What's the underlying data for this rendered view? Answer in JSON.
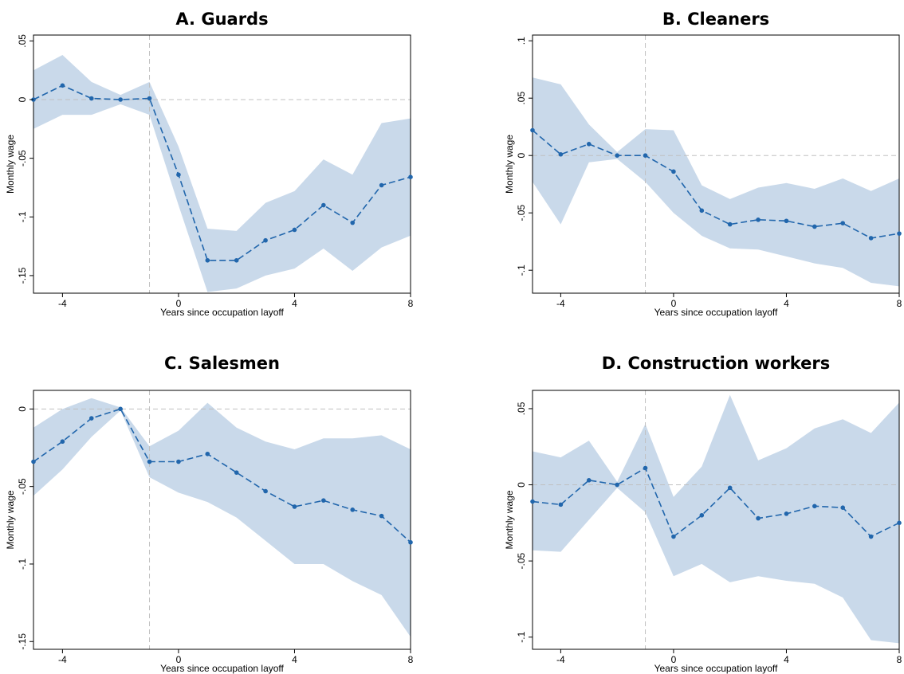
{
  "figure": {
    "colors": {
      "line": "#2166ac",
      "ci_fill": "#c9d9ea",
      "ref_line": "#c0c0c0",
      "axis": "#000000"
    }
  },
  "chart_data": [
    {
      "type": "line",
      "title": "A. Guards",
      "xlabel": "Years since occupation layoff",
      "ylabel": "Monthly wage",
      "xlim": [
        -5,
        8
      ],
      "ylim": [
        -0.165,
        0.055
      ],
      "x_ticks": [
        -4,
        0,
        4,
        8
      ],
      "x_tick_labels": [
        "-4",
        "0",
        "4",
        "8"
      ],
      "y_ticks": [
        0.05,
        0,
        -0.05,
        -0.1,
        -0.15
      ],
      "y_tick_labels": [
        ".05",
        "0",
        "-.05",
        "-.1",
        "-.15"
      ],
      "ref_lines": {
        "x": -1,
        "y": 0
      },
      "x": [
        -5,
        -4,
        -3,
        -2,
        -1,
        0,
        1,
        2,
        3,
        4,
        5,
        6,
        7,
        8
      ],
      "series": [
        {
          "values": [
            0,
            0.012,
            0.001,
            0,
            0.001,
            -0.064,
            -0.137,
            -0.137,
            -0.12,
            -0.111,
            -0.09,
            -0.105,
            -0.073,
            -0.066
          ],
          "ci_upper": [
            0.025,
            0.038,
            0.015,
            0.004,
            0.015,
            -0.04,
            -0.11,
            -0.112,
            -0.088,
            -0.078,
            -0.051,
            -0.064,
            -0.02,
            -0.016
          ],
          "ci_lower": [
            -0.025,
            -0.013,
            -0.013,
            -0.004,
            -0.013,
            -0.09,
            -0.164,
            -0.161,
            -0.15,
            -0.144,
            -0.127,
            -0.146,
            -0.126,
            -0.116
          ]
        }
      ]
    },
    {
      "type": "line",
      "title": "B. Cleaners",
      "xlabel": "Years since occupation layoff",
      "ylabel": "Monthly wage",
      "xlim": [
        -5,
        8
      ],
      "ylim": [
        -0.12,
        0.105
      ],
      "x_ticks": [
        -4,
        0,
        4,
        8
      ],
      "x_tick_labels": [
        "-4",
        "0",
        "4",
        "8"
      ],
      "y_ticks": [
        0.1,
        0.05,
        0,
        -0.05,
        -0.1
      ],
      "y_tick_labels": [
        ".1",
        ".05",
        "0",
        "-.05",
        "-.1"
      ],
      "ref_lines": {
        "x": -1,
        "y": 0
      },
      "x": [
        -5,
        -4,
        -3,
        -2,
        -1,
        0,
        1,
        2,
        3,
        4,
        5,
        6,
        7,
        8
      ],
      "series": [
        {
          "values": [
            0.022,
            0.001,
            0.01,
            0,
            0,
            -0.014,
            -0.048,
            -0.06,
            -0.056,
            -0.057,
            -0.062,
            -0.059,
            -0.072,
            -0.068
          ],
          "ci_upper": [
            0.068,
            0.062,
            0.027,
            0.003,
            0.023,
            0.022,
            -0.026,
            -0.038,
            -0.028,
            -0.024,
            -0.029,
            -0.02,
            -0.031,
            -0.02
          ],
          "ci_lower": [
            -0.023,
            -0.06,
            -0.006,
            -0.003,
            -0.023,
            -0.05,
            -0.07,
            -0.081,
            -0.082,
            -0.088,
            -0.094,
            -0.098,
            -0.111,
            -0.114
          ]
        }
      ]
    },
    {
      "type": "line",
      "title": "C. Salesmen",
      "xlabel": "Years since occupation layoff",
      "ylabel": "Monthly wage",
      "xlim": [
        -5,
        8
      ],
      "ylim": [
        -0.155,
        0.012
      ],
      "x_ticks": [
        -4,
        0,
        4,
        8
      ],
      "x_tick_labels": [
        "-4",
        "0",
        "4",
        "8"
      ],
      "y_ticks": [
        0,
        -0.05,
        -0.1,
        -0.15
      ],
      "y_tick_labels": [
        "0",
        "-.05",
        "-.1",
        "-.15"
      ],
      "ref_lines": {
        "x": -1,
        "y": 0
      },
      "x": [
        -5,
        -4,
        -3,
        -2,
        -1,
        0,
        1,
        2,
        3,
        4,
        5,
        6,
        7,
        8
      ],
      "series": [
        {
          "values": [
            -0.034,
            -0.021,
            -0.006,
            0,
            -0.034,
            -0.034,
            -0.029,
            -0.041,
            -0.053,
            -0.063,
            -0.059,
            -0.065,
            -0.069,
            -0.086
          ],
          "ci_upper": [
            -0.012,
            0,
            0.007,
            0.001,
            -0.024,
            -0.014,
            0.004,
            -0.012,
            -0.021,
            -0.026,
            -0.019,
            -0.019,
            -0.017,
            -0.026
          ],
          "ci_lower": [
            -0.056,
            -0.039,
            -0.018,
            -0.001,
            -0.044,
            -0.054,
            -0.06,
            -0.07,
            -0.085,
            -0.1,
            -0.1,
            -0.111,
            -0.12,
            -0.147
          ]
        }
      ]
    },
    {
      "type": "line",
      "title": "D. Construction workers",
      "xlabel": "Years since occupation layoff",
      "ylabel": "Monthly wage",
      "xlim": [
        -5,
        8
      ],
      "ylim": [
        -0.108,
        0.062
      ],
      "x_ticks": [
        -4,
        0,
        4,
        8
      ],
      "x_tick_labels": [
        "-4",
        "0",
        "4",
        "8"
      ],
      "y_ticks": [
        0.05,
        0,
        -0.05,
        -0.1
      ],
      "y_tick_labels": [
        ".05",
        "0",
        "-.05",
        "-.1"
      ],
      "ref_lines": {
        "x": -1,
        "y": 0
      },
      "x": [
        -5,
        -4,
        -3,
        -2,
        -1,
        0,
        1,
        2,
        3,
        4,
        5,
        6,
        7,
        8
      ],
      "series": [
        {
          "values": [
            -0.011,
            -0.013,
            0.003,
            0,
            0.011,
            -0.034,
            -0.02,
            -0.002,
            -0.022,
            -0.019,
            -0.014,
            -0.015,
            -0.034,
            -0.025
          ],
          "ci_upper": [
            0.022,
            0.018,
            0.029,
            0.002,
            0.04,
            -0.008,
            0.012,
            0.059,
            0.016,
            0.024,
            0.037,
            0.043,
            0.034,
            0.054
          ],
          "ci_lower": [
            -0.043,
            -0.044,
            -0.023,
            -0.002,
            -0.018,
            -0.06,
            -0.052,
            -0.064,
            -0.06,
            -0.063,
            -0.065,
            -0.074,
            -0.102,
            -0.104
          ]
        }
      ]
    }
  ]
}
